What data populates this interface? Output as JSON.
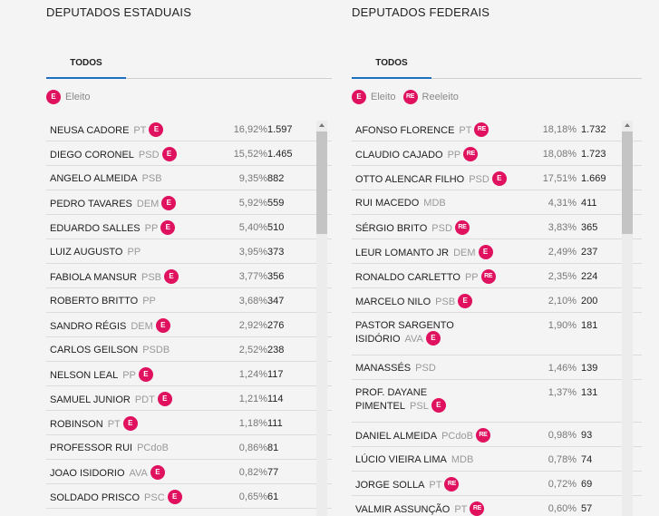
{
  "colors": {
    "badge": "#e0115f",
    "tab_underline": "#1e6fc2"
  },
  "estaduais": {
    "title": "DEPUTADOS ESTADUAIS",
    "tab": "TODOS",
    "legend": [
      {
        "badge": "E",
        "label": "Eleito"
      }
    ],
    "rows": [
      {
        "name": "NEUSA CADORE",
        "party": "PT",
        "badge": "E",
        "pct": "16,92%",
        "votes": "1.597"
      },
      {
        "name": "DIEGO CORONEL",
        "party": "PSD",
        "badge": "E",
        "pct": "15,52%",
        "votes": "1.465"
      },
      {
        "name": "ANGELO ALMEIDA",
        "party": "PSB",
        "badge": "",
        "pct": "9,35%",
        "votes": "882"
      },
      {
        "name": "PEDRO TAVARES",
        "party": "DEM",
        "badge": "E",
        "pct": "5,92%",
        "votes": "559"
      },
      {
        "name": "EDUARDO SALLES",
        "party": "PP",
        "badge": "E",
        "pct": "5,40%",
        "votes": "510"
      },
      {
        "name": "LUIZ AUGUSTO",
        "party": "PP",
        "badge": "",
        "pct": "3,95%",
        "votes": "373"
      },
      {
        "name": "FABIOLA MANSUR",
        "party": "PSB",
        "badge": "E",
        "pct": "3,77%",
        "votes": "356"
      },
      {
        "name": "ROBERTO BRITTO",
        "party": "PP",
        "badge": "",
        "pct": "3,68%",
        "votes": "347"
      },
      {
        "name": "SANDRO RÉGIS",
        "party": "DEM",
        "badge": "E",
        "pct": "2,92%",
        "votes": "276"
      },
      {
        "name": "CARLOS GEILSON",
        "party": "PSDB",
        "badge": "",
        "pct": "2,52%",
        "votes": "238"
      },
      {
        "name": "NELSON LEAL",
        "party": "PP",
        "badge": "E",
        "pct": "1,24%",
        "votes": "117"
      },
      {
        "name": "SAMUEL JUNIOR",
        "party": "PDT",
        "badge": "E",
        "pct": "1,21%",
        "votes": "114"
      },
      {
        "name": "ROBINSON",
        "party": "PT",
        "badge": "E",
        "pct": "1,18%",
        "votes": "111"
      },
      {
        "name": "PROFESSOR RUI",
        "party": "PCdoB",
        "badge": "",
        "pct": "0,86%",
        "votes": "81"
      },
      {
        "name": "JOAO ISIDORIO",
        "party": "AVA",
        "badge": "E",
        "pct": "0,82%",
        "votes": "77"
      },
      {
        "name": "SOLDADO PRISCO",
        "party": "PSC",
        "badge": "E",
        "pct": "0,65%",
        "votes": "61"
      }
    ]
  },
  "federais": {
    "title": "DEPUTADOS FEDERAIS",
    "tab": "TODOS",
    "legend": [
      {
        "badge": "E",
        "label": "Eleito"
      },
      {
        "badge": "RE",
        "label": "Reeleito"
      }
    ],
    "rows": [
      {
        "name": "AFONSO FLORENCE",
        "name2": "",
        "party": "PT",
        "badge": "RE",
        "pct": "18,18%",
        "votes": "1.732"
      },
      {
        "name": "CLAUDIO CAJADO",
        "name2": "",
        "party": "PP",
        "badge": "RE",
        "pct": "18,08%",
        "votes": "1.723"
      },
      {
        "name": "OTTO ALENCAR FILHO",
        "name2": "",
        "party": "PSD",
        "badge": "E",
        "pct": "17,51%",
        "votes": "1.669"
      },
      {
        "name": "RUI MACEDO",
        "name2": "",
        "party": "MDB",
        "badge": "",
        "pct": "4,31%",
        "votes": "411"
      },
      {
        "name": "SÉRGIO BRITO",
        "name2": "",
        "party": "PSD",
        "badge": "RE",
        "pct": "3,83%",
        "votes": "365"
      },
      {
        "name": "LEUR LOMANTO JR",
        "name2": "",
        "party": "DEM",
        "badge": "E",
        "pct": "2,49%",
        "votes": "237"
      },
      {
        "name": "RONALDO CARLETTO",
        "name2": "",
        "party": "PP",
        "badge": "RE",
        "pct": "2,35%",
        "votes": "224"
      },
      {
        "name": "MARCELO NILO",
        "name2": "",
        "party": "PSB",
        "badge": "E",
        "pct": "2,10%",
        "votes": "200"
      },
      {
        "name": "PASTOR SARGENTO",
        "name2": "ISIDÓRIO",
        "party": "AVA",
        "badge": "E",
        "pct": "1,90%",
        "votes": "181"
      },
      {
        "name": "MANASSÉS",
        "name2": "",
        "party": "PSD",
        "badge": "",
        "pct": "1,46%",
        "votes": "139"
      },
      {
        "name": "PROF. DAYANE",
        "name2": "PIMENTEL",
        "party": "PSL",
        "badge": "E",
        "pct": "1,37%",
        "votes": "131"
      },
      {
        "name": "DANIEL ALMEIDA",
        "name2": "",
        "party": "PCdoB",
        "badge": "RE",
        "pct": "0,98%",
        "votes": "93"
      },
      {
        "name": "LÚCIO VIEIRA LIMA",
        "name2": "",
        "party": "MDB",
        "badge": "",
        "pct": "0,78%",
        "votes": "74"
      },
      {
        "name": "JORGE SOLLA",
        "name2": "",
        "party": "PT",
        "badge": "RE",
        "pct": "0,72%",
        "votes": "69"
      },
      {
        "name": "VALMIR ASSUNÇÃO",
        "name2": "",
        "party": "PT",
        "badge": "RE",
        "pct": "0,60%",
        "votes": "57"
      }
    ]
  },
  "scroll": {
    "estaduais_thumb_fraction": 0.26,
    "federais_thumb_fraction": 0.26
  }
}
